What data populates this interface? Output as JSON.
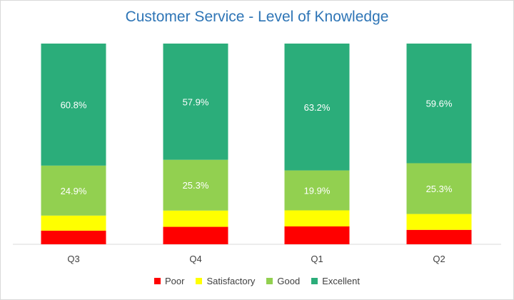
{
  "chart_data": {
    "type": "bar",
    "stacked": true,
    "normalized": true,
    "title": "Customer Service - Level of Knowledge",
    "categories": [
      "Q3",
      "Q4",
      "Q1",
      "Q2"
    ],
    "series": [
      {
        "name": "Poor",
        "color": "#ff0000",
        "values": [
          6.8,
          8.7,
          8.9,
          7.2
        ]
      },
      {
        "name": "Satisfactory",
        "color": "#ffff00",
        "values": [
          7.5,
          8.1,
          8.0,
          7.9
        ]
      },
      {
        "name": "Good",
        "color": "#92d050",
        "values": [
          24.9,
          25.3,
          19.9,
          25.3
        ],
        "labels": [
          "24.9%",
          "25.3%",
          "19.9%",
          "25.3%"
        ]
      },
      {
        "name": "Excellent",
        "color": "#2bad7a",
        "values": [
          60.8,
          57.9,
          63.2,
          59.6
        ],
        "labels": [
          "60.8%",
          "57.9%",
          "63.2%",
          "59.6%"
        ]
      }
    ],
    "ylim": [
      0,
      100
    ],
    "legend_position": "bottom",
    "grid": false
  }
}
